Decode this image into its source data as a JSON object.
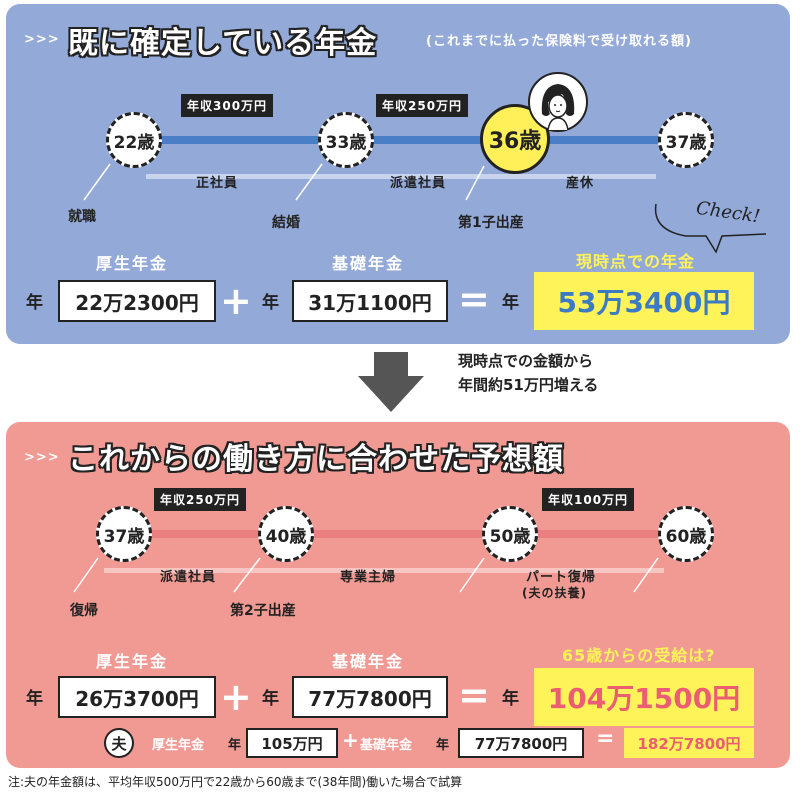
{
  "section1": {
    "arrows": ">>>",
    "title": "既に確定している年金",
    "note": "(これまでに払った保険料で受け取れる額)",
    "ages": [
      "22歳",
      "33歳",
      "36歳",
      "37歳"
    ],
    "salary_tags": [
      "年収300万円",
      "年収250万円"
    ],
    "periods": [
      "正社員",
      "派遣社員",
      "産休"
    ],
    "events": [
      "就職",
      "結婚",
      "第1子出産"
    ],
    "kosei_label": "厚生年金",
    "kiso_label": "基礎年金",
    "nen": "年",
    "kosei_value": "22万2300円",
    "kiso_value": "31万1100円",
    "result_label": "現時点での年金",
    "result_value": "53万3400円",
    "check": "Check!"
  },
  "middle": {
    "line1": "現時点での金額から",
    "line2": "年間約51万円増える"
  },
  "section2": {
    "arrows": ">>>",
    "title": "これからの働き方に合わせた予想額",
    "ages": [
      "37歳",
      "40歳",
      "50歳",
      "60歳"
    ],
    "salary_tags": [
      "年収250万円",
      "年収100万円"
    ],
    "periods": [
      "派遣社員",
      "専業主婦",
      "パート復帰",
      "(夫の扶養)"
    ],
    "events": [
      "復帰",
      "第2子出産"
    ],
    "kosei_label": "厚生年金",
    "kiso_label": "基礎年金",
    "nen": "年",
    "kosei_value": "26万3700円",
    "kiso_value": "77万7800円",
    "result_label": "65歳からの受給は?",
    "result_value": "104万1500円",
    "husband_mark": "夫",
    "husband_kosei_label": "厚生年金",
    "husband_kosei_value": "105万円",
    "husband_kiso_label": "基礎年金",
    "husband_kiso_value": "77万7800円",
    "husband_total": "182万7800円"
  },
  "footnote": "注:夫の年金額は、平均年収500万円で22歳から60歳まで(38年間)働いた場合で試算",
  "colors": {
    "panel1": "#93a9d8",
    "panel2": "#f19a93",
    "timeline1": "#4a7fc8",
    "timeline2": "#ea7f7f",
    "highlight": "#fff35a",
    "result_text1": "#3b7bc4",
    "result_text2": "#ea5d73"
  }
}
